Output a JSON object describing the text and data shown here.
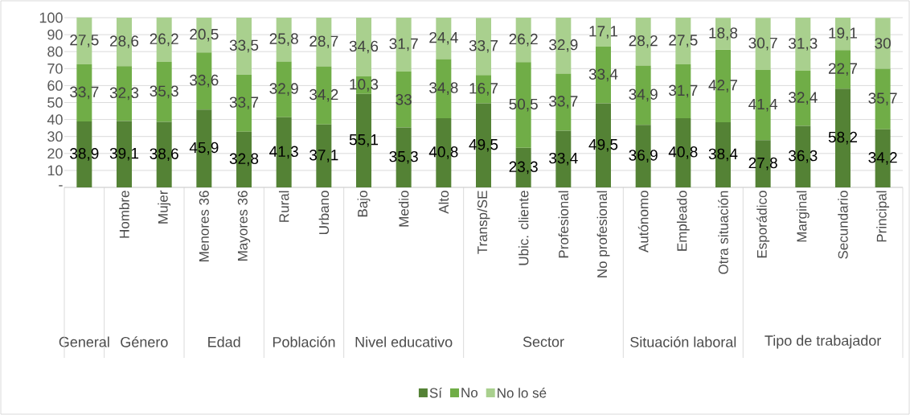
{
  "chart_data": {
    "type": "bar",
    "stacked": true,
    "grid": "y",
    "legend": "bottom",
    "categories": [
      null,
      "Hombre",
      "Mujer",
      "Menores 36",
      "Mayores 36",
      "Rural",
      "Urbano",
      "Bajo",
      "Medio",
      "Alto",
      "Transp/SE",
      "Ubic. cliente",
      "Profesional",
      "No profesional",
      "Autónomo",
      "Empleado",
      "Otra situación",
      "Esporádico",
      "Marginal",
      "Secundario",
      "Principal"
    ],
    "ylim": [
      0,
      100
    ],
    "yticks": [
      {
        "value": 0,
        "label": "-"
      },
      10,
      20,
      30,
      40,
      50,
      60,
      70,
      80,
      90,
      100
    ],
    "series": [
      {
        "name": "Sí",
        "color": "#548235",
        "values": [
          38.9,
          39.1,
          38.6,
          45.9,
          32.8,
          41.3,
          37.1,
          55.1,
          35.3,
          40.8,
          49.5,
          23.3,
          33.4,
          49.5,
          36.9,
          40.8,
          38.4,
          27.8,
          36.3,
          58.2,
          34.2
        ],
        "value_labels": [
          "38,9",
          "39,1",
          "38,6",
          "45,9",
          "32,8",
          "41,3",
          "37,1",
          "55,1",
          "35,3",
          "40,8",
          "49,5",
          "23,3",
          "33,4",
          "49,5",
          "36,9",
          "40,8",
          "38,4",
          "27,8",
          "36,3",
          "58,2",
          "34,2"
        ]
      },
      {
        "name": "No",
        "color": "#70ad47",
        "values": [
          33.7,
          32.3,
          35.3,
          33.6,
          33.7,
          32.9,
          34.2,
          10.3,
          33,
          34.8,
          16.7,
          50.5,
          33.7,
          33.4,
          34.9,
          31.7,
          42.7,
          41.4,
          32.4,
          22.7,
          35.7
        ],
        "value_labels": [
          "33,7",
          "32,3",
          "35,3",
          "33,6",
          "33,7",
          "32,9",
          "34,2",
          "10,3",
          "33",
          "34,8",
          "16,7",
          "50,5",
          "33,7",
          "33,4",
          "34,9",
          "31,7",
          "42,7",
          "41,4",
          "32,4",
          "22,7",
          "35,7"
        ]
      },
      {
        "name": "No lo sé",
        "color": "#a9d08e",
        "values": [
          27.5,
          28.6,
          26.2,
          20.5,
          33.5,
          25.8,
          28.7,
          34.6,
          31.7,
          24.4,
          33.7,
          26.2,
          32.9,
          17.1,
          28.2,
          27.5,
          18.8,
          30.7,
          31.3,
          19.1,
          30
        ],
        "value_labels": [
          "27,5",
          "28,6",
          "26,2",
          "20,5",
          "33,5",
          "25,8",
          "28,7",
          "34,6",
          "31,7",
          "24,4",
          "33,7",
          "26,2",
          "32,9",
          "17,1",
          "28,2",
          "27,5",
          "18,8",
          "30,7",
          "31,3",
          "19,1",
          "30"
        ]
      }
    ],
    "annotations": [
      "General",
      "Género",
      "Edad",
      "Población",
      "Nivel educativo",
      "Sector",
      "Situación laboral",
      "Tipo de trabajador"
    ]
  }
}
